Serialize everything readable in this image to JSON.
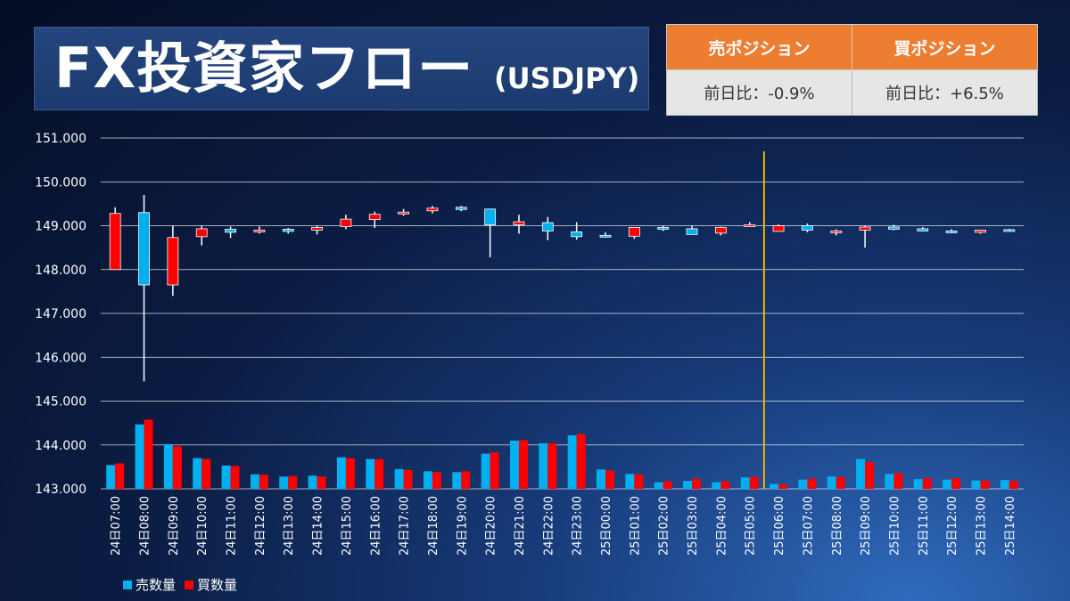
{
  "header": {
    "title": "FX投資家フロー",
    "pair": "(USDJPY)"
  },
  "positions": {
    "sell_header": "売ポジション",
    "buy_header": "買ポジション",
    "sell_change": "前日比：-0.9%",
    "buy_change": "前日比：+6.5%"
  },
  "colors": {
    "sell": "#00b0f0",
    "buy": "#ff0000",
    "divider": "#f0b000",
    "grid": "#ffffff",
    "header_bg": "#ed7d31"
  },
  "chart_data": {
    "type": "candlestick+bar",
    "ylim": [
      143,
      151
    ],
    "yticks": [
      "143.000",
      "144.000",
      "145.000",
      "146.000",
      "147.000",
      "148.000",
      "149.000",
      "150.000",
      "151.000"
    ],
    "categories": [
      "24日07:00",
      "24日08:00",
      "24日09:00",
      "24日10:00",
      "24日11:00",
      "24日12:00",
      "24日13:00",
      "24日14:00",
      "24日15:00",
      "24日16:00",
      "24日17:00",
      "24日18:00",
      "24日19:00",
      "24日20:00",
      "24日21:00",
      "24日22:00",
      "24日23:00",
      "25日00:00",
      "25日01:00",
      "25日02:00",
      "25日03:00",
      "25日04:00",
      "25日05:00",
      "25日06:00",
      "25日07:00",
      "25日08:00",
      "25日09:00",
      "25日10:00",
      "25日11:00",
      "25日12:00",
      "25日13:00",
      "25日14:00"
    ],
    "divider_after_category": "25日05:00",
    "candles": {
      "note": "color r = 買 (red), b = 売 (blue)",
      "rows": [
        [
          149.28,
          149.42,
          148.0,
          148.0,
          "r"
        ],
        [
          149.3,
          149.7,
          145.45,
          147.65,
          "b"
        ],
        [
          148.73,
          149.0,
          147.4,
          147.65,
          "r"
        ],
        [
          148.93,
          149.0,
          148.55,
          148.75,
          "r"
        ],
        [
          148.85,
          148.98,
          148.72,
          148.92,
          "b"
        ],
        [
          148.9,
          148.98,
          148.82,
          148.86,
          "r"
        ],
        [
          148.87,
          148.95,
          148.82,
          148.92,
          "b"
        ],
        [
          148.96,
          149.0,
          148.8,
          148.9,
          "r"
        ],
        [
          149.15,
          149.25,
          148.92,
          148.98,
          "r"
        ],
        [
          149.26,
          149.32,
          148.95,
          149.14,
          "r"
        ],
        [
          149.31,
          149.38,
          149.23,
          149.27,
          "r"
        ],
        [
          149.4,
          149.45,
          149.28,
          149.34,
          "r"
        ],
        [
          149.37,
          149.45,
          149.33,
          149.42,
          "b"
        ],
        [
          149.02,
          149.38,
          148.28,
          149.38,
          "b"
        ],
        [
          149.09,
          149.25,
          148.82,
          149.02,
          "r"
        ],
        [
          148.88,
          149.2,
          148.67,
          149.07,
          "b"
        ],
        [
          148.75,
          149.08,
          148.68,
          148.86,
          "b"
        ],
        [
          148.76,
          148.85,
          148.73,
          148.78,
          "b"
        ],
        [
          148.96,
          148.96,
          148.7,
          148.76,
          "r"
        ],
        [
          148.94,
          149.0,
          148.88,
          148.96,
          "b"
        ],
        [
          148.8,
          149.0,
          148.8,
          148.93,
          "b"
        ],
        [
          148.96,
          148.98,
          148.78,
          148.83,
          "r"
        ],
        [
          149.02,
          149.08,
          148.98,
          149.0,
          "r"
        ],
        [
          149.0,
          149.03,
          148.88,
          148.87,
          "r"
        ],
        [
          148.9,
          149.05,
          148.85,
          149.0,
          "b"
        ],
        [
          148.88,
          148.92,
          148.78,
          148.86,
          "r"
        ],
        [
          148.97,
          149.0,
          148.5,
          148.9,
          "r"
        ],
        [
          148.92,
          149.02,
          148.9,
          148.97,
          "b"
        ],
        [
          148.88,
          148.97,
          148.87,
          148.93,
          "b"
        ],
        [
          148.84,
          148.92,
          148.83,
          148.88,
          "b"
        ],
        [
          148.9,
          148.9,
          148.82,
          148.85,
          "r"
        ],
        [
          148.9,
          148.93,
          148.86,
          148.91,
          "b"
        ]
      ]
    },
    "series": [
      {
        "name": "売数量",
        "values": [
          143.54,
          144.47,
          144.02,
          143.7,
          143.53,
          143.33,
          143.28,
          143.3,
          143.72,
          143.68,
          143.45,
          143.4,
          143.38,
          143.8,
          144.1,
          144.04,
          144.22,
          143.44,
          143.34,
          143.15,
          143.18,
          143.15,
          143.26,
          143.11,
          143.21,
          143.28,
          143.68,
          143.34,
          143.22,
          143.21,
          143.19,
          143.2
        ]
      },
      {
        "name": "買数量",
        "values": [
          143.58,
          144.58,
          143.97,
          143.68,
          143.52,
          143.32,
          143.29,
          143.28,
          143.7,
          143.68,
          143.43,
          143.38,
          143.4,
          143.83,
          144.11,
          144.04,
          144.25,
          143.42,
          143.33,
          143.17,
          143.23,
          143.17,
          143.27,
          143.1,
          143.23,
          143.27,
          143.61,
          143.36,
          143.24,
          143.24,
          143.19,
          143.18
        ]
      }
    ]
  },
  "legend": {
    "sell_label": "売数量",
    "buy_label": "買数量"
  }
}
